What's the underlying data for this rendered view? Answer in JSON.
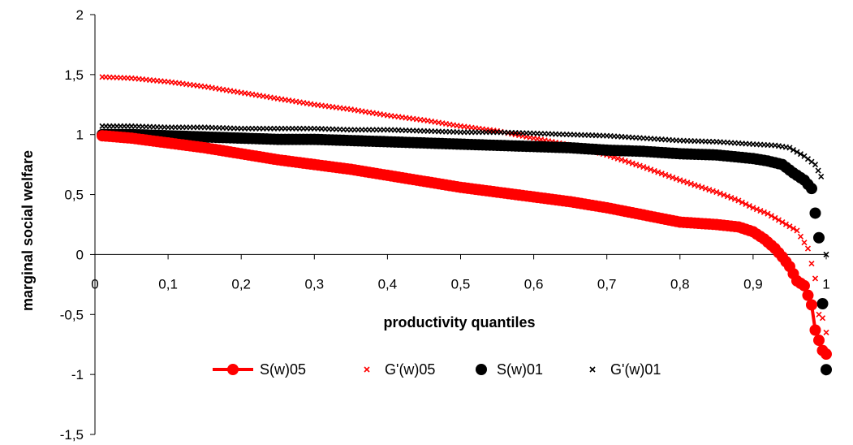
{
  "chart_data": {
    "type": "scatter",
    "xlabel": "productivity quantiles",
    "ylabel": "marginal social welfare",
    "xlim": [
      0,
      1
    ],
    "ylim": [
      -1.5,
      2
    ],
    "x_ticks": [
      "0",
      "0,1",
      "0,2",
      "0,3",
      "0,4",
      "0,5",
      "0,6",
      "0,7",
      "0,8",
      "0,9",
      "1"
    ],
    "y_ticks": [
      "2",
      "1,5",
      "1",
      "0,5",
      "0",
      "-0,5",
      "-1",
      "-1,5"
    ],
    "legend_position": "bottom",
    "colors": {
      "red": "#ff0000",
      "black": "#000000"
    },
    "series": [
      {
        "name": "S(w)05",
        "style": "line-with-circles",
        "color": "#ff0000",
        "points": [
          [
            0.01,
            0.99
          ],
          [
            0.05,
            0.97
          ],
          [
            0.1,
            0.93
          ],
          [
            0.15,
            0.89
          ],
          [
            0.2,
            0.84
          ],
          [
            0.25,
            0.79
          ],
          [
            0.3,
            0.75
          ],
          [
            0.35,
            0.71
          ],
          [
            0.4,
            0.66
          ],
          [
            0.45,
            0.61
          ],
          [
            0.5,
            0.56
          ],
          [
            0.55,
            0.52
          ],
          [
            0.6,
            0.48
          ],
          [
            0.65,
            0.44
          ],
          [
            0.7,
            0.39
          ],
          [
            0.75,
            0.33
          ],
          [
            0.8,
            0.27
          ],
          [
            0.85,
            0.25
          ],
          [
            0.88,
            0.23
          ],
          [
            0.9,
            0.19
          ],
          [
            0.915,
            0.13
          ],
          [
            0.93,
            0.05
          ],
          [
            0.94,
            -0.02
          ],
          [
            0.95,
            -0.1
          ],
          [
            0.96,
            -0.22
          ],
          [
            0.97,
            -0.26
          ],
          [
            0.98,
            -0.42
          ],
          [
            0.985,
            -0.63
          ],
          [
            0.995,
            -0.8
          ],
          [
            1.0,
            -0.83
          ]
        ]
      },
      {
        "name": "G'(w)05",
        "style": "x-markers",
        "color": "#ff0000",
        "points": [
          [
            0.01,
            1.48
          ],
          [
            0.05,
            1.47
          ],
          [
            0.1,
            1.44
          ],
          [
            0.15,
            1.4
          ],
          [
            0.2,
            1.35
          ],
          [
            0.25,
            1.3
          ],
          [
            0.3,
            1.25
          ],
          [
            0.35,
            1.21
          ],
          [
            0.4,
            1.16
          ],
          [
            0.45,
            1.12
          ],
          [
            0.5,
            1.07
          ],
          [
            0.55,
            1.03
          ],
          [
            0.6,
            0.97
          ],
          [
            0.65,
            0.91
          ],
          [
            0.7,
            0.83
          ],
          [
            0.75,
            0.73
          ],
          [
            0.8,
            0.62
          ],
          [
            0.85,
            0.52
          ],
          [
            0.88,
            0.45
          ],
          [
            0.9,
            0.39
          ],
          [
            0.92,
            0.34
          ],
          [
            0.94,
            0.27
          ],
          [
            0.96,
            0.2
          ],
          [
            0.975,
            0.05
          ],
          [
            0.985,
            -0.2
          ],
          [
            0.99,
            -0.5
          ],
          [
            0.995,
            -0.53
          ],
          [
            1.0,
            -0.65
          ]
        ]
      },
      {
        "name": "S(w)01",
        "style": "circle-markers",
        "color": "#000000",
        "points": [
          [
            0.01,
            1.0
          ],
          [
            0.05,
            1.0
          ],
          [
            0.1,
            0.99
          ],
          [
            0.15,
            0.98
          ],
          [
            0.2,
            0.97
          ],
          [
            0.25,
            0.96
          ],
          [
            0.3,
            0.96
          ],
          [
            0.35,
            0.95
          ],
          [
            0.4,
            0.94
          ],
          [
            0.45,
            0.93
          ],
          [
            0.5,
            0.92
          ],
          [
            0.55,
            0.91
          ],
          [
            0.6,
            0.9
          ],
          [
            0.65,
            0.89
          ],
          [
            0.7,
            0.87
          ],
          [
            0.75,
            0.86
          ],
          [
            0.8,
            0.84
          ],
          [
            0.85,
            0.83
          ],
          [
            0.9,
            0.8
          ],
          [
            0.92,
            0.78
          ],
          [
            0.94,
            0.75
          ],
          [
            0.955,
            0.68
          ],
          [
            0.97,
            0.62
          ],
          [
            0.98,
            0.55
          ],
          [
            0.99,
            0.14
          ],
          [
            1.0,
            -0.96
          ]
        ]
      },
      {
        "name": "G'(w)01",
        "style": "x-markers",
        "color": "#000000",
        "points": [
          [
            0.01,
            1.07
          ],
          [
            0.05,
            1.07
          ],
          [
            0.1,
            1.06
          ],
          [
            0.15,
            1.06
          ],
          [
            0.2,
            1.05
          ],
          [
            0.25,
            1.05
          ],
          [
            0.3,
            1.05
          ],
          [
            0.35,
            1.04
          ],
          [
            0.4,
            1.04
          ],
          [
            0.45,
            1.03
          ],
          [
            0.5,
            1.02
          ],
          [
            0.55,
            1.02
          ],
          [
            0.6,
            1.01
          ],
          [
            0.65,
            1.0
          ],
          [
            0.7,
            0.99
          ],
          [
            0.75,
            0.97
          ],
          [
            0.8,
            0.95
          ],
          [
            0.85,
            0.94
          ],
          [
            0.9,
            0.92
          ],
          [
            0.93,
            0.91
          ],
          [
            0.95,
            0.89
          ],
          [
            0.97,
            0.82
          ],
          [
            0.985,
            0.75
          ],
          [
            0.993,
            0.65
          ],
          [
            1.0,
            0.0
          ]
        ]
      }
    ]
  }
}
